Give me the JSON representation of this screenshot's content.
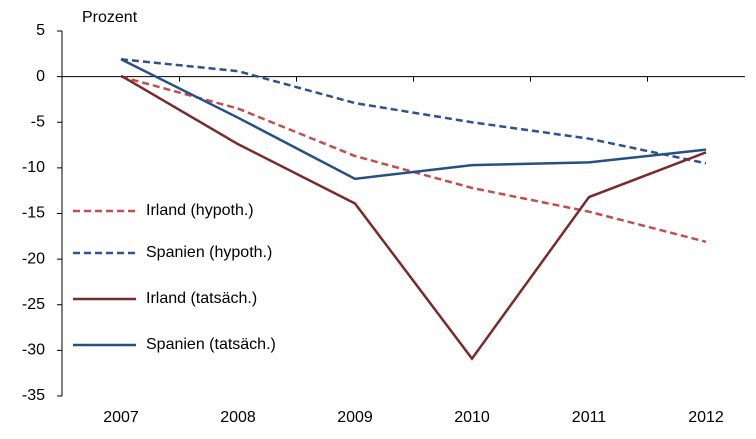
{
  "chart_data": {
    "type": "line",
    "y_label": "Prozent",
    "categories": [
      "2007",
      "2008",
      "2009",
      "2010",
      "2011",
      "2012"
    ],
    "series": [
      {
        "name": "Irland (hypoth.)",
        "color": "#c0504d",
        "dashed": true,
        "values": [
          0,
          -3.5,
          -8.7,
          -12.2,
          -14.8,
          -18.1
        ]
      },
      {
        "name": "Spanien (hypoth.)",
        "color": "#2d528f",
        "dashed": true,
        "values": [
          1.9,
          0.6,
          -2.9,
          -5,
          -6.8,
          -9.5
        ]
      },
      {
        "name": "Irland (tatsäch.)",
        "color": "#7a2a2a",
        "dashed": false,
        "values": [
          0.1,
          -7.4,
          -13.9,
          -30.9,
          -13.2,
          -8.3
        ]
      },
      {
        "name": "Spanien (tatsäch.)",
        "color": "#255086",
        "dashed": false,
        "values": [
          1.9,
          -4.5,
          -11.2,
          -9.7,
          -9.4,
          -8.0
        ]
      }
    ],
    "ylim": [
      -35,
      5
    ],
    "yticks": [
      -35,
      -30,
      -25,
      -20,
      -15,
      -10,
      -5,
      0,
      5
    ],
    "grid": false,
    "legend": "left"
  }
}
